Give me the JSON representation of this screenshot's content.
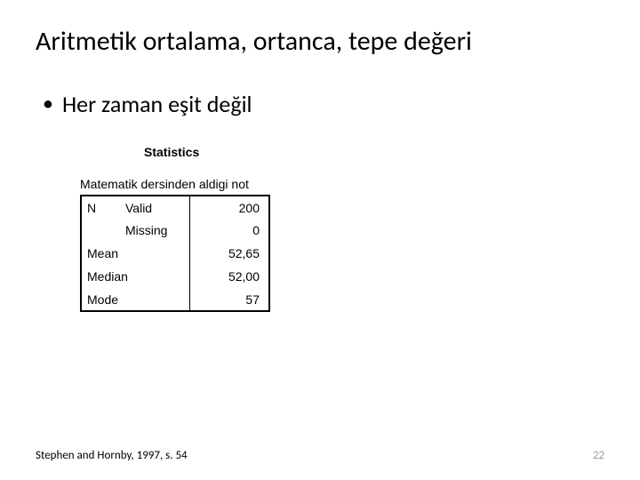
{
  "title": "Aritmetik ortalama, ortanca, tepe değeri",
  "bullet": "Her zaman eşit değil",
  "stats": {
    "heading": "Statistics",
    "caption": "Matematik dersinden aldigi not",
    "rows": {
      "n_label": "N",
      "valid_label": "Valid",
      "valid_value": "200",
      "missing_label": "Missing",
      "missing_value": "0",
      "mean_label": "Mean",
      "mean_value": "52,65",
      "median_label": "Median",
      "median_value": "52,00",
      "mode_label": "Mode",
      "mode_value": "57"
    }
  },
  "citation": "Stephen and Hornby, 1997, s. 54",
  "page_number": "22",
  "colors": {
    "text": "#000000",
    "page_num": "#9a9a9a",
    "background": "#ffffff",
    "border": "#000000"
  }
}
